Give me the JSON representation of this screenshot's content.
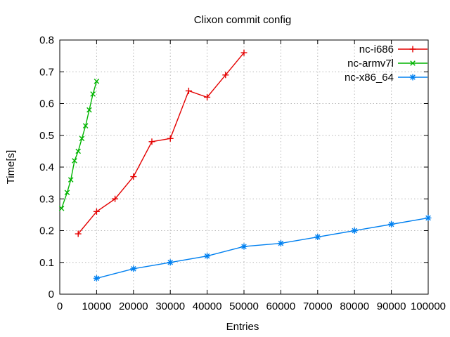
{
  "title": "Clixon commit config",
  "chart_data": {
    "type": "line",
    "title": "Clixon commit config",
    "xlabel": "Entries",
    "ylabel": "Time[s]",
    "xlim": [
      0,
      100000
    ],
    "ylim": [
      0,
      0.8
    ],
    "xtick_step": 10000,
    "ytick_step": 0.1,
    "xticks": [
      "0",
      "10000",
      "20000",
      "30000",
      "40000",
      "50000",
      "60000",
      "70000",
      "80000",
      "90000",
      "100000"
    ],
    "yticks": [
      "0",
      "0.1",
      "0.2",
      "0.3",
      "0.4",
      "0.5",
      "0.6",
      "0.7",
      "0.8"
    ],
    "grid": true,
    "grid_style": "dotted",
    "legend_position": "top-right-inside",
    "colors": {
      "background": "#ffffff",
      "axis": "#000000",
      "grid": "#b8b8b8",
      "text": "#000000"
    },
    "series": [
      {
        "name": "nc-i686",
        "color": "#e40000",
        "marker": "plus",
        "points": [
          [
            5000,
            0.19
          ],
          [
            10000,
            0.26
          ],
          [
            15000,
            0.3
          ],
          [
            20000,
            0.37
          ],
          [
            25000,
            0.48
          ],
          [
            30000,
            0.49
          ],
          [
            35000,
            0.64
          ],
          [
            40000,
            0.62
          ],
          [
            45000,
            0.69
          ],
          [
            50000,
            0.76
          ]
        ]
      },
      {
        "name": "nc-armv7l",
        "color": "#00b400",
        "marker": "cross",
        "points": [
          [
            500,
            0.27
          ],
          [
            2000,
            0.32
          ],
          [
            3000,
            0.36
          ],
          [
            4000,
            0.42
          ],
          [
            5000,
            0.45
          ],
          [
            6000,
            0.49
          ],
          [
            7000,
            0.53
          ],
          [
            8000,
            0.58
          ],
          [
            9000,
            0.63
          ],
          [
            10000,
            0.67
          ]
        ]
      },
      {
        "name": "nc-x86_64",
        "color": "#0080f0",
        "marker": "asterisk",
        "points": [
          [
            10000,
            0.05
          ],
          [
            20000,
            0.08
          ],
          [
            30000,
            0.1
          ],
          [
            40000,
            0.12
          ],
          [
            50000,
            0.15
          ],
          [
            60000,
            0.16
          ],
          [
            70000,
            0.18
          ],
          [
            80000,
            0.2
          ],
          [
            90000,
            0.22
          ],
          [
            100000,
            0.24
          ]
        ]
      }
    ]
  }
}
